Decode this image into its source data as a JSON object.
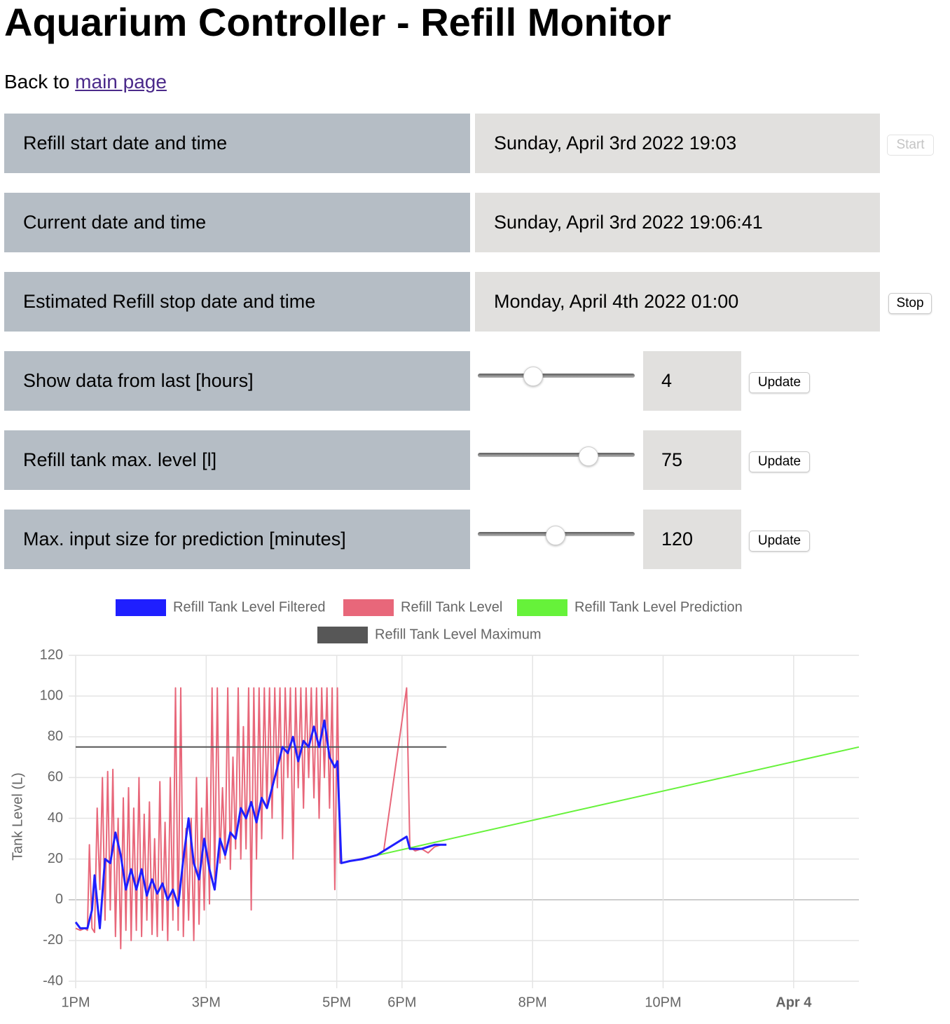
{
  "header": {
    "title": "Aquarium Controller - Refill Monitor",
    "back_text": "Back to",
    "back_link": "main page"
  },
  "rows": [
    {
      "label": "Refill start date and time",
      "value": "Sunday, April 3rd 2022 19:03",
      "button": "Start"
    },
    {
      "label": "Current date and time",
      "value": "Sunday, April 3rd 2022 19:06:41"
    },
    {
      "label": "Estimated Refill stop date and time",
      "value": "Monday, April 4th 2022 01:00",
      "button": "Stop"
    }
  ],
  "controls": [
    {
      "label": "Show data from last [hours]",
      "value": 4,
      "button": "Update"
    },
    {
      "label": "Refill tank max. level [l]",
      "value": 75,
      "button": "Update"
    },
    {
      "label": "Max. input size for prediction [minutes]",
      "value": 120,
      "button": "Update"
    }
  ],
  "chart_data": {
    "type": "line",
    "y_label": "Tank Level (L)",
    "xlim": [
      13,
      25
    ],
    "xticks": [
      {
        "value": 13,
        "label": "1PM"
      },
      {
        "value": 15,
        "label": "3PM"
      },
      {
        "value": 17,
        "label": "5PM"
      },
      {
        "value": 18,
        "label": "6PM"
      },
      {
        "value": 20,
        "label": "8PM"
      },
      {
        "value": 22,
        "label": "10PM"
      },
      {
        "value": 24,
        "label": "Apr 4",
        "major": true
      }
    ],
    "ylim": [
      -40,
      120
    ],
    "yticks": [
      -40,
      -20,
      0,
      20,
      40,
      60,
      80,
      100,
      120
    ],
    "grid": true,
    "series": [
      {
        "name": "Refill Tank Level Filtered",
        "color": "#1f1fff",
        "x": [
          13.0,
          13.07,
          13.14,
          13.18,
          13.25,
          13.29,
          13.37,
          13.45,
          13.53,
          13.61,
          13.69,
          13.77,
          13.85,
          13.93,
          14.01,
          14.09,
          14.17,
          14.25,
          14.33,
          14.41,
          14.49,
          14.57,
          14.65,
          14.73,
          14.81,
          14.89,
          14.97,
          15.05,
          15.13,
          15.21,
          15.29,
          15.37,
          15.45,
          15.53,
          15.61,
          15.69,
          15.77,
          15.85,
          15.93,
          16.01,
          16.09,
          16.17,
          16.25,
          16.33,
          16.41,
          16.49,
          16.57,
          16.65,
          16.73,
          16.81,
          16.89,
          16.97,
          17.01,
          17.07,
          17.2,
          17.4,
          17.62,
          17.72,
          18.07,
          18.12,
          18.3,
          18.5,
          18.68
        ],
        "values": [
          -11,
          -14,
          -14,
          -14,
          -5,
          12,
          -14,
          20,
          18,
          33,
          22,
          5,
          15,
          5,
          15,
          2,
          10,
          3,
          8,
          0,
          5,
          -3,
          20,
          40,
          18,
          10,
          30,
          15,
          5,
          30,
          22,
          33,
          30,
          45,
          40,
          48,
          38,
          50,
          45,
          55,
          65,
          75,
          72,
          80,
          68,
          78,
          75,
          85,
          75,
          88,
          70,
          65,
          68,
          18,
          19,
          20,
          22,
          24,
          31,
          25,
          25,
          27,
          27
        ]
      },
      {
        "name": "Refill Tank Level",
        "color": "#e8677a",
        "x": [
          13.0,
          13.07,
          13.14,
          13.18,
          13.21,
          13.25,
          13.29,
          13.33,
          13.37,
          13.41,
          13.45,
          13.49,
          13.53,
          13.57,
          13.61,
          13.65,
          13.69,
          13.73,
          13.77,
          13.81,
          13.85,
          13.89,
          13.93,
          13.97,
          14.01,
          14.05,
          14.09,
          14.13,
          14.17,
          14.21,
          14.25,
          14.29,
          14.33,
          14.37,
          14.41,
          14.45,
          14.49,
          14.53,
          14.57,
          14.61,
          14.65,
          14.69,
          14.73,
          14.77,
          14.81,
          14.85,
          14.89,
          14.93,
          14.97,
          15.01,
          15.05,
          15.09,
          15.13,
          15.17,
          15.21,
          15.25,
          15.29,
          15.33,
          15.37,
          15.41,
          15.45,
          15.49,
          15.53,
          15.57,
          15.61,
          15.65,
          15.69,
          15.73,
          15.77,
          15.81,
          15.85,
          15.89,
          15.93,
          15.97,
          16.01,
          16.05,
          16.09,
          16.13,
          16.17,
          16.21,
          16.25,
          16.29,
          16.33,
          16.37,
          16.41,
          16.45,
          16.49,
          16.53,
          16.57,
          16.61,
          16.65,
          16.69,
          16.73,
          16.77,
          16.81,
          16.85,
          16.89,
          16.93,
          16.97,
          17.01,
          17.05,
          17.2,
          17.35,
          17.5,
          17.62,
          17.72,
          18.07,
          18.12,
          18.2,
          18.3,
          18.4,
          18.5,
          18.6,
          18.68
        ],
        "values": [
          -14,
          -15,
          -14,
          -15,
          27,
          -14,
          -16,
          45,
          5,
          60,
          -10,
          63,
          -5,
          64,
          -18,
          40,
          -24,
          50,
          -15,
          55,
          -20,
          45,
          -15,
          60,
          -18,
          42,
          -10,
          48,
          -17,
          30,
          -18,
          58,
          -15,
          38,
          -20,
          60,
          -10,
          104,
          -15,
          104,
          -18,
          35,
          -10,
          40,
          -20,
          60,
          -12,
          45,
          -5,
          60,
          -2,
          104,
          10,
          104,
          18,
          55,
          20,
          104,
          15,
          70,
          25,
          104,
          20,
          85,
          25,
          104,
          -5,
          104,
          20,
          104,
          30,
          104,
          45,
          104,
          40,
          104,
          55,
          104,
          30,
          104,
          60,
          104,
          20,
          104,
          55,
          104,
          45,
          104,
          60,
          104,
          50,
          104,
          40,
          104,
          60,
          104,
          45,
          104,
          5,
          104,
          18,
          19,
          20,
          21,
          22,
          24,
          104,
          26,
          24,
          25,
          23,
          26,
          27,
          27
        ]
      },
      {
        "name": "Refill Tank Level Prediction",
        "color": "#66f23a",
        "x": [
          17.64,
          25
        ],
        "values": [
          22,
          75
        ]
      },
      {
        "name": "Refill Tank Level Maximum",
        "color": "#575757",
        "x": [
          13,
          18.68
        ],
        "values": [
          75,
          75
        ]
      }
    ]
  }
}
